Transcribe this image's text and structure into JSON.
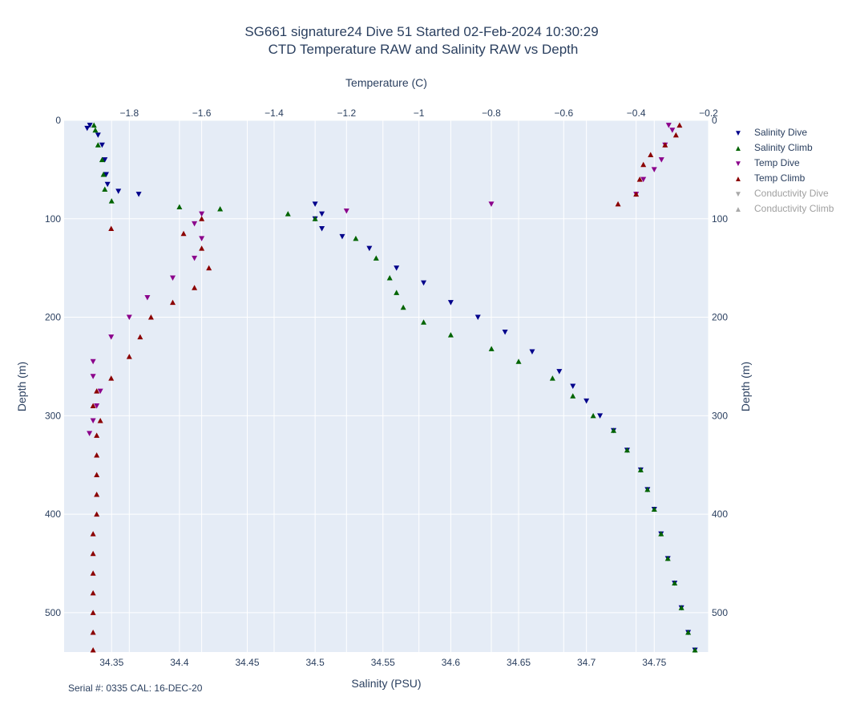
{
  "chart_data": {
    "type": "scatter",
    "title_line1": "SG661 signature24 Dive 51 Started 02-Feb-2024 10:30:29",
    "title_line2": "CTD Temperature RAW and Salinity RAW vs Depth",
    "xlabel_bottom": "Salinity (PSU)",
    "xlabel_top": "Temperature (C)",
    "ylabel_left": "Depth (m)",
    "ylabel_right": "Depth (m)",
    "salinity_range": [
      34.315,
      34.79
    ],
    "temperature_range": [
      -1.98,
      -0.2
    ],
    "depth_range": [
      0,
      540
    ],
    "salinity_ticks": [
      "34.35",
      "34.4",
      "34.45",
      "34.5",
      "34.55",
      "34.6",
      "34.65",
      "34.7",
      "34.75"
    ],
    "temperature_ticks": [
      "−1.8",
      "−1.6",
      "−1.4",
      "−1.2",
      "−1",
      "−0.8",
      "−0.6",
      "−0.4",
      "−0.2"
    ],
    "depth_ticks": [
      "0",
      "100",
      "200",
      "300",
      "400",
      "500"
    ],
    "grid": true,
    "legend_position": "top-right",
    "colors": {
      "salinity_dive": "#00008b",
      "salinity_climb": "#006400",
      "temp_dive": "#8b008b",
      "temp_climb": "#8b0000",
      "conductivity_dive": "#a9a9a9",
      "conductivity_climb": "#a9a9a9",
      "plot_bg": "#e5ecf6"
    },
    "series": [
      {
        "name": "Salinity Dive",
        "axis": "salinity",
        "marker": "triangle-down",
        "points": [
          [
            34.334,
            5
          ],
          [
            34.332,
            8
          ],
          [
            34.34,
            15
          ],
          [
            34.343,
            25
          ],
          [
            34.345,
            40
          ],
          [
            34.346,
            55
          ],
          [
            34.347,
            65
          ],
          [
            34.355,
            72
          ],
          [
            34.37,
            75
          ],
          [
            34.5,
            85
          ],
          [
            34.505,
            95
          ],
          [
            34.5,
            100
          ],
          [
            34.505,
            110
          ],
          [
            34.52,
            118
          ],
          [
            34.54,
            130
          ],
          [
            34.56,
            150
          ],
          [
            34.58,
            165
          ],
          [
            34.6,
            185
          ],
          [
            34.62,
            200
          ],
          [
            34.64,
            215
          ],
          [
            34.66,
            235
          ],
          [
            34.68,
            255
          ],
          [
            34.69,
            270
          ],
          [
            34.7,
            285
          ],
          [
            34.71,
            300
          ],
          [
            34.72,
            315
          ],
          [
            34.73,
            335
          ],
          [
            34.74,
            355
          ],
          [
            34.745,
            375
          ],
          [
            34.75,
            395
          ],
          [
            34.755,
            420
          ],
          [
            34.76,
            445
          ],
          [
            34.765,
            470
          ],
          [
            34.77,
            495
          ],
          [
            34.775,
            520
          ],
          [
            34.78,
            538
          ]
        ]
      },
      {
        "name": "Salinity Climb",
        "axis": "salinity",
        "marker": "triangle-up",
        "points": [
          [
            34.78,
            538
          ],
          [
            34.775,
            520
          ],
          [
            34.77,
            495
          ],
          [
            34.765,
            470
          ],
          [
            34.76,
            445
          ],
          [
            34.755,
            420
          ],
          [
            34.75,
            395
          ],
          [
            34.745,
            375
          ],
          [
            34.74,
            355
          ],
          [
            34.73,
            335
          ],
          [
            34.72,
            315
          ],
          [
            34.705,
            300
          ],
          [
            34.69,
            280
          ],
          [
            34.675,
            262
          ],
          [
            34.65,
            245
          ],
          [
            34.63,
            232
          ],
          [
            34.6,
            218
          ],
          [
            34.58,
            205
          ],
          [
            34.565,
            190
          ],
          [
            34.56,
            175
          ],
          [
            34.555,
            160
          ],
          [
            34.545,
            140
          ],
          [
            34.53,
            120
          ],
          [
            34.5,
            100
          ],
          [
            34.48,
            95
          ],
          [
            34.43,
            90
          ],
          [
            34.4,
            88
          ],
          [
            34.35,
            82
          ],
          [
            34.345,
            70
          ],
          [
            34.344,
            55
          ],
          [
            34.343,
            40
          ],
          [
            34.34,
            25
          ],
          [
            34.338,
            10
          ],
          [
            34.337,
            5
          ]
        ]
      },
      {
        "name": "Temp Dive",
        "axis": "temperature",
        "marker": "triangle-down",
        "points": [
          [
            -0.31,
            5
          ],
          [
            -0.3,
            10
          ],
          [
            -0.32,
            25
          ],
          [
            -0.33,
            40
          ],
          [
            -0.35,
            50
          ],
          [
            -0.38,
            60
          ],
          [
            -0.4,
            75
          ],
          [
            -0.8,
            85
          ],
          [
            -1.2,
            92
          ],
          [
            -1.6,
            95
          ],
          [
            -1.62,
            105
          ],
          [
            -1.6,
            120
          ],
          [
            -1.62,
            140
          ],
          [
            -1.68,
            160
          ],
          [
            -1.75,
            180
          ],
          [
            -1.8,
            200
          ],
          [
            -1.85,
            220
          ],
          [
            -1.9,
            245
          ],
          [
            -1.9,
            260
          ],
          [
            -1.88,
            275
          ],
          [
            -1.89,
            290
          ],
          [
            -1.9,
            305
          ],
          [
            -1.91,
            318
          ]
        ]
      },
      {
        "name": "Temp Climb",
        "axis": "temperature",
        "marker": "triangle-up",
        "points": [
          [
            -1.9,
            538
          ],
          [
            -1.9,
            520
          ],
          [
            -1.9,
            500
          ],
          [
            -1.9,
            480
          ],
          [
            -1.9,
            460
          ],
          [
            -1.9,
            440
          ],
          [
            -1.9,
            420
          ],
          [
            -1.89,
            400
          ],
          [
            -1.89,
            380
          ],
          [
            -1.89,
            360
          ],
          [
            -1.89,
            340
          ],
          [
            -1.89,
            320
          ],
          [
            -1.88,
            305
          ],
          [
            -1.9,
            290
          ],
          [
            -1.89,
            275
          ],
          [
            -1.85,
            262
          ],
          [
            -1.8,
            240
          ],
          [
            -1.77,
            220
          ],
          [
            -1.74,
            200
          ],
          [
            -1.68,
            185
          ],
          [
            -1.62,
            170
          ],
          [
            -1.58,
            150
          ],
          [
            -1.6,
            130
          ],
          [
            -1.65,
            115
          ],
          [
            -1.85,
            110
          ],
          [
            -1.6,
            100
          ],
          [
            -0.45,
            85
          ],
          [
            -0.4,
            75
          ],
          [
            -0.39,
            60
          ],
          [
            -0.38,
            45
          ],
          [
            -0.36,
            35
          ],
          [
            -0.32,
            25
          ],
          [
            -0.29,
            15
          ],
          [
            -0.28,
            5
          ]
        ]
      }
    ]
  },
  "legend": [
    {
      "label": "Salinity Dive",
      "symbol": "▼",
      "color": "#00008b",
      "visible": true
    },
    {
      "label": "Salinity Climb",
      "symbol": "▲",
      "color": "#006400",
      "visible": true
    },
    {
      "label": "Temp Dive",
      "symbol": "▼",
      "color": "#8b008b",
      "visible": true
    },
    {
      "label": "Temp Climb",
      "symbol": "▲",
      "color": "#8b0000",
      "visible": true
    },
    {
      "label": "Conductivity Dive",
      "symbol": "▼",
      "color": "#a9a9a9",
      "visible": false
    },
    {
      "label": "Conductivity Climb",
      "symbol": "▲",
      "color": "#a9a9a9",
      "visible": false
    }
  ],
  "footer": {
    "note": "Serial #: 0335  CAL: 16-DEC-20"
  }
}
